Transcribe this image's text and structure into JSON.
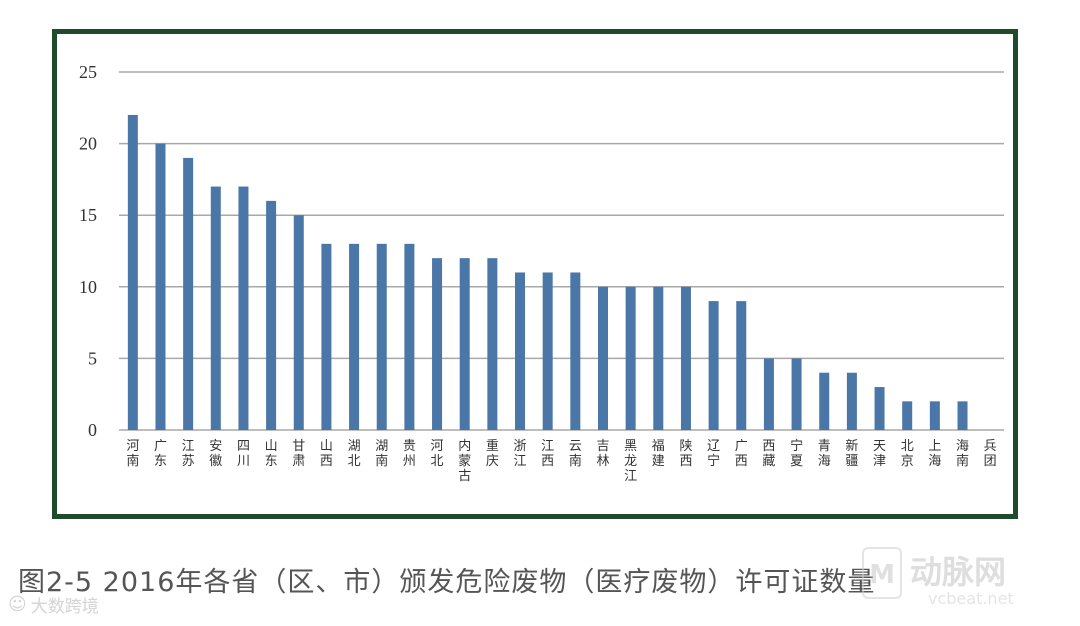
{
  "chart_data": {
    "type": "bar",
    "categories": [
      "河南",
      "广东",
      "江苏",
      "安徽",
      "四川",
      "山东",
      "甘肃",
      "山西",
      "湖北",
      "湖南",
      "贵州",
      "河北",
      "内蒙古",
      "重庆",
      "浙江",
      "江西",
      "云南",
      "吉林",
      "黑龙江",
      "福建",
      "陕西",
      "辽宁",
      "广西",
      "西藏",
      "宁夏",
      "青海",
      "新疆",
      "天津",
      "北京",
      "上海",
      "海南",
      "兵团"
    ],
    "values": [
      22,
      20,
      19,
      17,
      17,
      16,
      15,
      13,
      13,
      13,
      13,
      12,
      12,
      12,
      11,
      11,
      11,
      10,
      10,
      10,
      10,
      9,
      9,
      5,
      5,
      4,
      4,
      3,
      2,
      2,
      2,
      0
    ],
    "ylim": [
      0,
      25
    ],
    "yticks": [
      "0",
      "5",
      "10",
      "15",
      "20",
      "25"
    ],
    "grid": true,
    "bar_color": "#4a76a8",
    "grid_color": "#a8a8a8"
  },
  "caption": "图2-5   2016年各省（区、市）颁发危险废物（医疗废物）许可证数量",
  "watermark_left": "大数跨境",
  "watermark_right_name": "动脉网",
  "watermark_right_url": "vcbeat.net",
  "colors": {
    "frame": "#1f4a2c"
  }
}
